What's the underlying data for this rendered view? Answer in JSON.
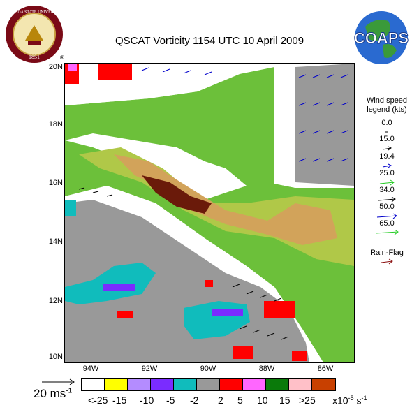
{
  "title": "QSCAT Vorticity 1154 UTC 10 April 2009",
  "fsu_logo": {
    "name": "fsu-seal",
    "text_top": "FLORIDA STATE UNIVERSITY",
    "year": "1851",
    "mark": "®"
  },
  "coaps_logo": {
    "name": "coaps-globe-logo",
    "text": "COAPS"
  },
  "axes": {
    "lat_labels": [
      "20N",
      "18N",
      "16N",
      "14N",
      "12N",
      "10N"
    ],
    "lon_labels": [
      "94W",
      "92W",
      "90W",
      "88W",
      "86W"
    ]
  },
  "wind_legend": {
    "title_line1": "Wind speed",
    "title_line2": "legend (kts)",
    "items": [
      {
        "value": "0.0",
        "color": "#000000"
      },
      {
        "value": "15.0",
        "color": "#000000"
      },
      {
        "value": "19.4",
        "color": "#0000cc"
      },
      {
        "value": "25.0",
        "color": "#22cc22"
      },
      {
        "value": "34.0",
        "color": "#000000"
      },
      {
        "value": "50.0",
        "color": "#0000cc"
      },
      {
        "value": "65.0",
        "color": "#22cc22"
      }
    ],
    "rain_flag_label": "Rain-Flag",
    "rain_flag_color": "#8b1010"
  },
  "scale_arrow": {
    "label_value": "20 ms",
    "label_exp": "-1"
  },
  "colorbar": {
    "colors": [
      "#ffffff",
      "#ffff00",
      "#b48cff",
      "#7a2cff",
      "#10bcbc",
      "#999999",
      "#ff0000",
      "#ff66ff",
      "#0a7a0a",
      "#ffc0c8",
      "#c84000"
    ],
    "labels": [
      "<-25",
      "-15",
      "-10",
      "-5",
      "-2",
      "2",
      "5",
      "10",
      "15",
      ">25"
    ],
    "units_prefix": "x10",
    "units_exp": "-5",
    "units_suffix": " s",
    "units_exp2": "-1"
  }
}
